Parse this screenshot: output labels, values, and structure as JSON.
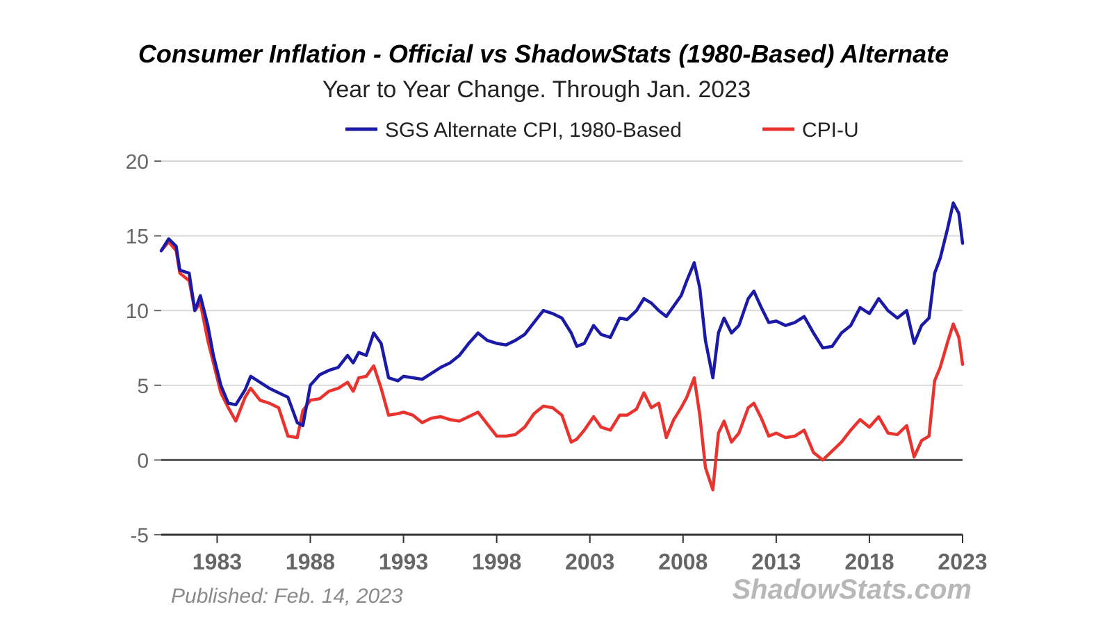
{
  "chart_data": {
    "type": "line",
    "title": "Consumer Inflation - Official vs ShadowStats (1980-Based) Alternate",
    "subtitle": "Year to Year Change. Through Jan. 2023",
    "ylim": [
      -5,
      20
    ],
    "yticks": [
      20,
      15,
      10,
      5,
      0,
      -5
    ],
    "xlim": [
      1980,
      2023
    ],
    "xticks": [
      1983,
      1988,
      1993,
      1998,
      2003,
      2008,
      2013,
      2018,
      2023
    ],
    "grid": true,
    "legend_position": "top-center",
    "series": [
      {
        "name": "SGS Alternate CPI, 1980-Based",
        "color": "#1a1aa6",
        "points": [
          [
            1980.0,
            14.0
          ],
          [
            1980.4,
            14.8
          ],
          [
            1980.8,
            14.3
          ],
          [
            1981.0,
            12.7
          ],
          [
            1981.5,
            12.5
          ],
          [
            1981.8,
            10.0
          ],
          [
            1982.1,
            11.0
          ],
          [
            1982.5,
            9.0
          ],
          [
            1982.8,
            7.0
          ],
          [
            1983.2,
            5.0
          ],
          [
            1983.6,
            3.8
          ],
          [
            1984.0,
            3.7
          ],
          [
            1984.5,
            4.7
          ],
          [
            1984.8,
            5.6
          ],
          [
            1985.3,
            5.2
          ],
          [
            1985.8,
            4.8
          ],
          [
            1986.3,
            4.5
          ],
          [
            1986.8,
            4.2
          ],
          [
            1987.3,
            2.5
          ],
          [
            1987.6,
            2.3
          ],
          [
            1988.0,
            5.0
          ],
          [
            1988.5,
            5.7
          ],
          [
            1989.0,
            6.0
          ],
          [
            1989.5,
            6.2
          ],
          [
            1990.0,
            7.0
          ],
          [
            1990.3,
            6.5
          ],
          [
            1990.6,
            7.2
          ],
          [
            1991.0,
            7.0
          ],
          [
            1991.4,
            8.5
          ],
          [
            1991.8,
            7.8
          ],
          [
            1992.2,
            5.5
          ],
          [
            1992.7,
            5.3
          ],
          [
            1993.0,
            5.6
          ],
          [
            1993.5,
            5.5
          ],
          [
            1994.0,
            5.4
          ],
          [
            1994.5,
            5.8
          ],
          [
            1995.0,
            6.2
          ],
          [
            1995.5,
            6.5
          ],
          [
            1996.0,
            7.0
          ],
          [
            1996.5,
            7.8
          ],
          [
            1997.0,
            8.5
          ],
          [
            1997.5,
            8.0
          ],
          [
            1998.0,
            7.8
          ],
          [
            1998.5,
            7.7
          ],
          [
            1999.0,
            8.0
          ],
          [
            1999.5,
            8.4
          ],
          [
            2000.0,
            9.2
          ],
          [
            2000.5,
            10.0
          ],
          [
            2001.0,
            9.8
          ],
          [
            2001.5,
            9.5
          ],
          [
            2002.0,
            8.5
          ],
          [
            2002.3,
            7.6
          ],
          [
            2002.7,
            7.8
          ],
          [
            2003.2,
            9.0
          ],
          [
            2003.6,
            8.4
          ],
          [
            2004.1,
            8.2
          ],
          [
            2004.6,
            9.5
          ],
          [
            2005.0,
            9.4
          ],
          [
            2005.5,
            10.0
          ],
          [
            2005.9,
            10.8
          ],
          [
            2006.3,
            10.5
          ],
          [
            2006.7,
            10.0
          ],
          [
            2007.1,
            9.6
          ],
          [
            2007.5,
            10.3
          ],
          [
            2007.9,
            11.0
          ],
          [
            2008.2,
            12.0
          ],
          [
            2008.6,
            13.2
          ],
          [
            2008.9,
            11.5
          ],
          [
            2009.2,
            8.0
          ],
          [
            2009.6,
            5.5
          ],
          [
            2009.9,
            8.5
          ],
          [
            2010.2,
            9.5
          ],
          [
            2010.6,
            8.5
          ],
          [
            2011.0,
            9.0
          ],
          [
            2011.5,
            10.8
          ],
          [
            2011.8,
            11.3
          ],
          [
            2012.2,
            10.2
          ],
          [
            2012.6,
            9.2
          ],
          [
            2013.0,
            9.3
          ],
          [
            2013.5,
            9.0
          ],
          [
            2014.0,
            9.2
          ],
          [
            2014.5,
            9.6
          ],
          [
            2015.0,
            8.5
          ],
          [
            2015.5,
            7.5
          ],
          [
            2016.0,
            7.6
          ],
          [
            2016.5,
            8.5
          ],
          [
            2017.0,
            9.0
          ],
          [
            2017.5,
            10.2
          ],
          [
            2018.0,
            9.8
          ],
          [
            2018.5,
            10.8
          ],
          [
            2019.0,
            10.0
          ],
          [
            2019.5,
            9.5
          ],
          [
            2020.0,
            10.0
          ],
          [
            2020.4,
            7.8
          ],
          [
            2020.8,
            9.0
          ],
          [
            2021.2,
            9.5
          ],
          [
            2021.5,
            12.5
          ],
          [
            2021.8,
            13.5
          ],
          [
            2022.2,
            15.5
          ],
          [
            2022.5,
            17.2
          ],
          [
            2022.8,
            16.5
          ],
          [
            2023.0,
            14.5
          ]
        ]
      },
      {
        "name": "CPI-U",
        "color": "#e8332e",
        "points": [
          [
            1980.0,
            14.0
          ],
          [
            1980.4,
            14.6
          ],
          [
            1980.8,
            14.0
          ],
          [
            1981.0,
            12.5
          ],
          [
            1981.5,
            12.0
          ],
          [
            1981.8,
            10.0
          ],
          [
            1982.1,
            10.5
          ],
          [
            1982.5,
            8.0
          ],
          [
            1982.8,
            6.5
          ],
          [
            1983.2,
            4.5
          ],
          [
            1983.6,
            3.5
          ],
          [
            1984.0,
            2.6
          ],
          [
            1984.5,
            4.2
          ],
          [
            1984.8,
            4.8
          ],
          [
            1985.3,
            4.0
          ],
          [
            1985.8,
            3.8
          ],
          [
            1986.3,
            3.5
          ],
          [
            1986.8,
            1.6
          ],
          [
            1987.3,
            1.5
          ],
          [
            1987.6,
            3.3
          ],
          [
            1988.0,
            4.0
          ],
          [
            1988.5,
            4.1
          ],
          [
            1989.0,
            4.6
          ],
          [
            1989.5,
            4.8
          ],
          [
            1990.0,
            5.2
          ],
          [
            1990.3,
            4.6
          ],
          [
            1990.6,
            5.5
          ],
          [
            1991.0,
            5.6
          ],
          [
            1991.4,
            6.3
          ],
          [
            1991.8,
            4.8
          ],
          [
            1992.2,
            3.0
          ],
          [
            1992.7,
            3.1
          ],
          [
            1993.0,
            3.2
          ],
          [
            1993.5,
            3.0
          ],
          [
            1994.0,
            2.5
          ],
          [
            1994.5,
            2.8
          ],
          [
            1995.0,
            2.9
          ],
          [
            1995.5,
            2.7
          ],
          [
            1996.0,
            2.6
          ],
          [
            1996.5,
            2.9
          ],
          [
            1997.0,
            3.2
          ],
          [
            1997.5,
            2.4
          ],
          [
            1998.0,
            1.6
          ],
          [
            1998.5,
            1.6
          ],
          [
            1999.0,
            1.7
          ],
          [
            1999.5,
            2.2
          ],
          [
            2000.0,
            3.1
          ],
          [
            2000.5,
            3.6
          ],
          [
            2001.0,
            3.5
          ],
          [
            2001.5,
            3.0
          ],
          [
            2002.0,
            1.2
          ],
          [
            2002.3,
            1.4
          ],
          [
            2002.7,
            2.0
          ],
          [
            2003.2,
            2.9
          ],
          [
            2003.6,
            2.2
          ],
          [
            2004.1,
            2.0
          ],
          [
            2004.6,
            3.0
          ],
          [
            2005.0,
            3.0
          ],
          [
            2005.5,
            3.4
          ],
          [
            2005.9,
            4.5
          ],
          [
            2006.3,
            3.5
          ],
          [
            2006.7,
            3.8
          ],
          [
            2007.1,
            1.5
          ],
          [
            2007.5,
            2.7
          ],
          [
            2007.9,
            3.5
          ],
          [
            2008.2,
            4.2
          ],
          [
            2008.6,
            5.5
          ],
          [
            2008.9,
            3.0
          ],
          [
            2009.2,
            -0.5
          ],
          [
            2009.6,
            -2.0
          ],
          [
            2009.9,
            1.8
          ],
          [
            2010.2,
            2.6
          ],
          [
            2010.6,
            1.2
          ],
          [
            2011.0,
            1.8
          ],
          [
            2011.5,
            3.5
          ],
          [
            2011.8,
            3.8
          ],
          [
            2012.2,
            2.8
          ],
          [
            2012.6,
            1.6
          ],
          [
            2013.0,
            1.8
          ],
          [
            2013.5,
            1.5
          ],
          [
            2014.0,
            1.6
          ],
          [
            2014.5,
            2.0
          ],
          [
            2015.0,
            0.5
          ],
          [
            2015.5,
            0.0
          ],
          [
            2016.0,
            0.6
          ],
          [
            2016.5,
            1.2
          ],
          [
            2017.0,
            2.0
          ],
          [
            2017.5,
            2.7
          ],
          [
            2018.0,
            2.2
          ],
          [
            2018.5,
            2.9
          ],
          [
            2019.0,
            1.8
          ],
          [
            2019.5,
            1.7
          ],
          [
            2020.0,
            2.3
          ],
          [
            2020.4,
            0.2
          ],
          [
            2020.8,
            1.3
          ],
          [
            2021.2,
            1.6
          ],
          [
            2021.5,
            5.3
          ],
          [
            2021.8,
            6.2
          ],
          [
            2022.2,
            7.9
          ],
          [
            2022.5,
            9.1
          ],
          [
            2022.8,
            8.2
          ],
          [
            2023.0,
            6.4
          ]
        ]
      }
    ]
  },
  "published": "Published: Feb. 14, 2023",
  "watermark": "ShadowStats.com",
  "colors": {
    "zero_line": "#555555",
    "axis": "#333333",
    "grid": "#d9d9d9"
  }
}
